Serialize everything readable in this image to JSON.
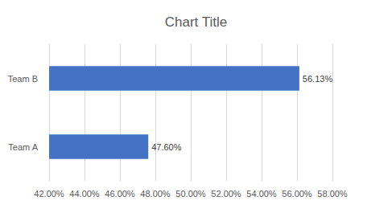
{
  "chart_data": {
    "type": "bar",
    "title": "Chart Title",
    "orientation": "horizontal",
    "categories": [
      "Team A",
      "Team B"
    ],
    "values": [
      47.6,
      56.13
    ],
    "value_labels": [
      "47.60%",
      "56.13%"
    ],
    "color": "#4472c4",
    "xlim": [
      42,
      58
    ],
    "xticks": [
      {
        "value": 42,
        "label": "42.00%"
      },
      {
        "value": 44,
        "label": "44.00%"
      },
      {
        "value": 46,
        "label": "46.00%"
      },
      {
        "value": 48,
        "label": "48.00%"
      },
      {
        "value": 50,
        "label": "50.00%"
      },
      {
        "value": 52,
        "label": "52.00%"
      },
      {
        "value": 54,
        "label": "54.00%"
      },
      {
        "value": 56,
        "label": "56.00%"
      },
      {
        "value": 58,
        "label": "58.00%"
      }
    ],
    "grid": true,
    "data_labels": true
  }
}
